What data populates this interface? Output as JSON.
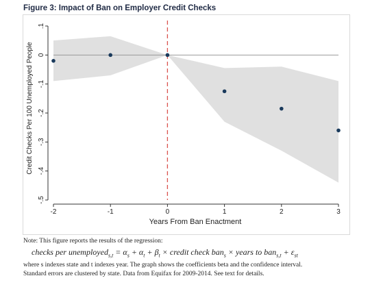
{
  "figure": {
    "title": "Figure 3: Impact of Ban on Employer Credit Checks"
  },
  "chart_data": {
    "type": "scatter",
    "title": "",
    "xlabel": "Years From Ban Enactment",
    "ylabel": "Credit Checks Per 100 Unemployed People",
    "xlim": [
      -2,
      3
    ],
    "ylim": [
      -0.5,
      0.1
    ],
    "x_ticks": [
      "-2",
      "-1",
      "0",
      "1",
      "2",
      "3"
    ],
    "y_ticks": [
      ".1",
      "0",
      "-.1",
      "-.2",
      "-.3",
      "-.4",
      "-.5"
    ],
    "grid": false,
    "vline_x": 0,
    "series": [
      {
        "x": [
          -2,
          -1,
          0,
          1,
          2,
          3
        ],
        "y": [
          -0.02,
          0.0,
          0.0,
          -0.125,
          -0.185,
          -0.26
        ],
        "ci_upper": [
          0.05,
          0.065,
          0.0,
          -0.045,
          -0.04,
          -0.09
        ],
        "ci_lower": [
          -0.09,
          -0.07,
          0.0,
          -0.23,
          -0.33,
          -0.44
        ]
      }
    ],
    "colors": {
      "point": "#1a3a5c",
      "band": "#e0e0e0",
      "vline": "#d9534f",
      "zero_line": "#999999"
    }
  },
  "note": {
    "line1": "Note: This figure reports the results of the regression:",
    "eq_lhs": "checks per unemployed",
    "eq_lhs_sub": "s,t",
    "eq_rest_1": " = α",
    "eq_sub_s": "s",
    "eq_rest_2": " + α",
    "eq_sub_t": "t",
    "eq_rest_3": " + β",
    "eq_sub_t2": "t",
    "eq_rest_4": " × credit check ban",
    "eq_sub_s2": "s",
    "eq_rest_5": " × years to ban",
    "eq_sub_st": "s,t",
    "eq_rest_6": " + ε",
    "eq_sub_st2": "st",
    "line3": "where s indexes state and t indexes year. The graph shows the coefficients beta and the confidence interval.",
    "line4": "Standard errors are clustered by state. Data from Equifax for 2009-2014. See text for details."
  }
}
